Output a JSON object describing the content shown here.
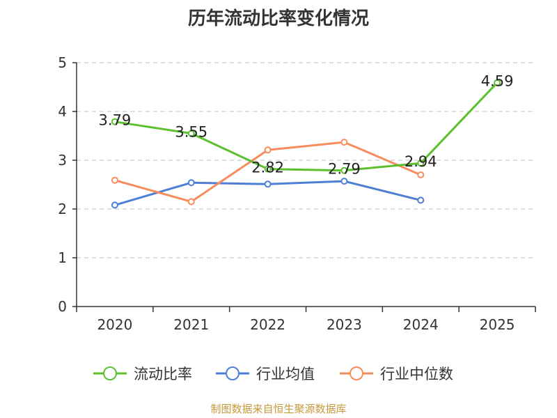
{
  "chart_data": {
    "type": "line",
    "title": "历年流动比率变化情况",
    "categories": [
      "2020",
      "2021",
      "2022",
      "2023",
      "2024",
      "2025"
    ],
    "ylim": [
      0,
      5
    ],
    "yticks": [
      0,
      1,
      2,
      3,
      4,
      5
    ],
    "grid": true,
    "legend_position": "bottom",
    "series": [
      {
        "name": "流动比率",
        "color": "#5cc02e",
        "values": [
          3.79,
          3.55,
          2.82,
          2.79,
          2.94,
          4.59
        ],
        "labels": [
          "3.79",
          "3.55",
          "2.82",
          "2.79",
          "2.94",
          "4.59"
        ]
      },
      {
        "name": "行业均值",
        "color": "#4e7fd6",
        "values": [
          2.08,
          2.54,
          2.51,
          2.57,
          2.18,
          null
        ]
      },
      {
        "name": "行业中位数",
        "color": "#f78c5c",
        "values": [
          2.59,
          2.15,
          3.21,
          3.37,
          2.7,
          null
        ]
      }
    ]
  },
  "source": "制图数据来自恒生聚源数据库"
}
